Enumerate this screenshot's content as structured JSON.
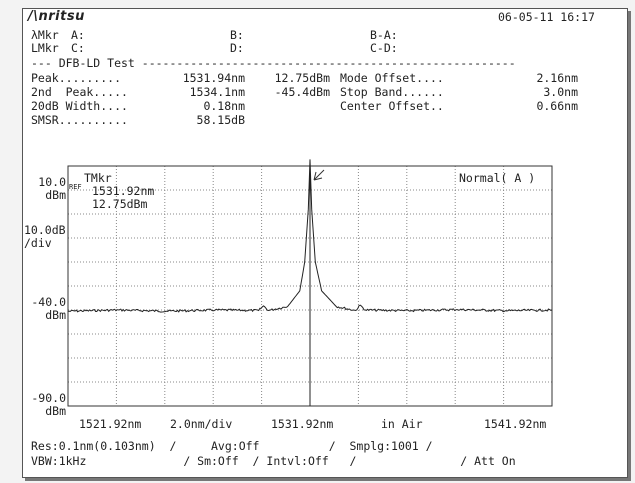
{
  "header": {
    "brand": "/\\nritsu",
    "datetime": "06-05-11 16:17"
  },
  "markers": {
    "row1": {
      "label": "λMkr",
      "a": "A:",
      "b": "B:",
      "ba": "B-A:"
    },
    "row2": {
      "label": "LMkr",
      "c": "C:",
      "d": "D:",
      "cd": "C-D:"
    }
  },
  "test": {
    "title": "--- DFB-LD Test ------------------------------------------------------",
    "rows": [
      {
        "label": "Peak.........",
        "v1": "1531.94nm",
        "v2": "12.75dBm",
        "label2": "Mode Offset....",
        "v3": "2.16nm"
      },
      {
        "label": "2nd  Peak.....",
        "v1": "1534.1nm",
        "v2": "-45.4dBm",
        "label2": "Stop Band......",
        "v3": "3.0nm"
      },
      {
        "label": "20dB Width....",
        "v1": "0.18nm",
        "v2": "",
        "label2": "Center Offset..",
        "v3": "0.66nm"
      },
      {
        "label": "SMSR..........",
        "v1": "58.15dB",
        "v2": "",
        "label2": "",
        "v3": ""
      }
    ]
  },
  "plot": {
    "y_top": "10.0",
    "y_top_unit": "dBm",
    "ref_tag": "REF",
    "scale": "10.0dB",
    "scale_unit": "/div",
    "y_mid": "-40.0",
    "y_mid_unit": "dBm",
    "y_bottom": "-90.0",
    "y_bottom_unit": "dBm",
    "marker_title": "TMkr",
    "marker_wl": "1531.92nm",
    "marker_pwr": "12.75dBm",
    "mode": "Normal( A )",
    "x_start": "1521.92nm",
    "x_span": "2.0nm/div",
    "x_center": "1531.92nm",
    "x_medium": "in Air",
    "x_stop": "1541.92nm"
  },
  "settings": {
    "line1": "Res:0.1nm(0.103nm)  /     Avg:Off          /  Smplg:1001 /",
    "line2": "VBW:1kHz              / Sm:Off  / Intvl:Off   /               / Att On"
  },
  "chart_data": {
    "type": "line",
    "xlabel": "",
    "ylabel": "",
    "xlim": [
      1521.92,
      1541.92
    ],
    "ylim": [
      -90,
      10
    ],
    "x_unit": "nm",
    "y_unit": "dBm",
    "grid": true,
    "series": [
      {
        "values_x": [
          1521.92,
          1524.0,
          1526.0,
          1528.0,
          1529.8,
          1530.0,
          1530.2,
          1531.0,
          1531.5,
          1531.7,
          1531.85,
          1531.92,
          1531.99,
          1532.14,
          1532.4,
          1533.0,
          1533.8,
          1534.0,
          1534.2,
          1536.0,
          1538.0,
          1540.0,
          1541.92
        ],
        "values_y": [
          -50.5,
          -50.0,
          -50.5,
          -50.0,
          -50.2,
          -48.3,
          -50.2,
          -48.5,
          -42.0,
          -30.0,
          -8.0,
          12.75,
          -8.0,
          -30.0,
          -42.0,
          -48.5,
          -50.2,
          -48.0,
          -50.0,
          -50.3,
          -49.8,
          -50.3,
          -50.0
        ]
      }
    ]
  }
}
